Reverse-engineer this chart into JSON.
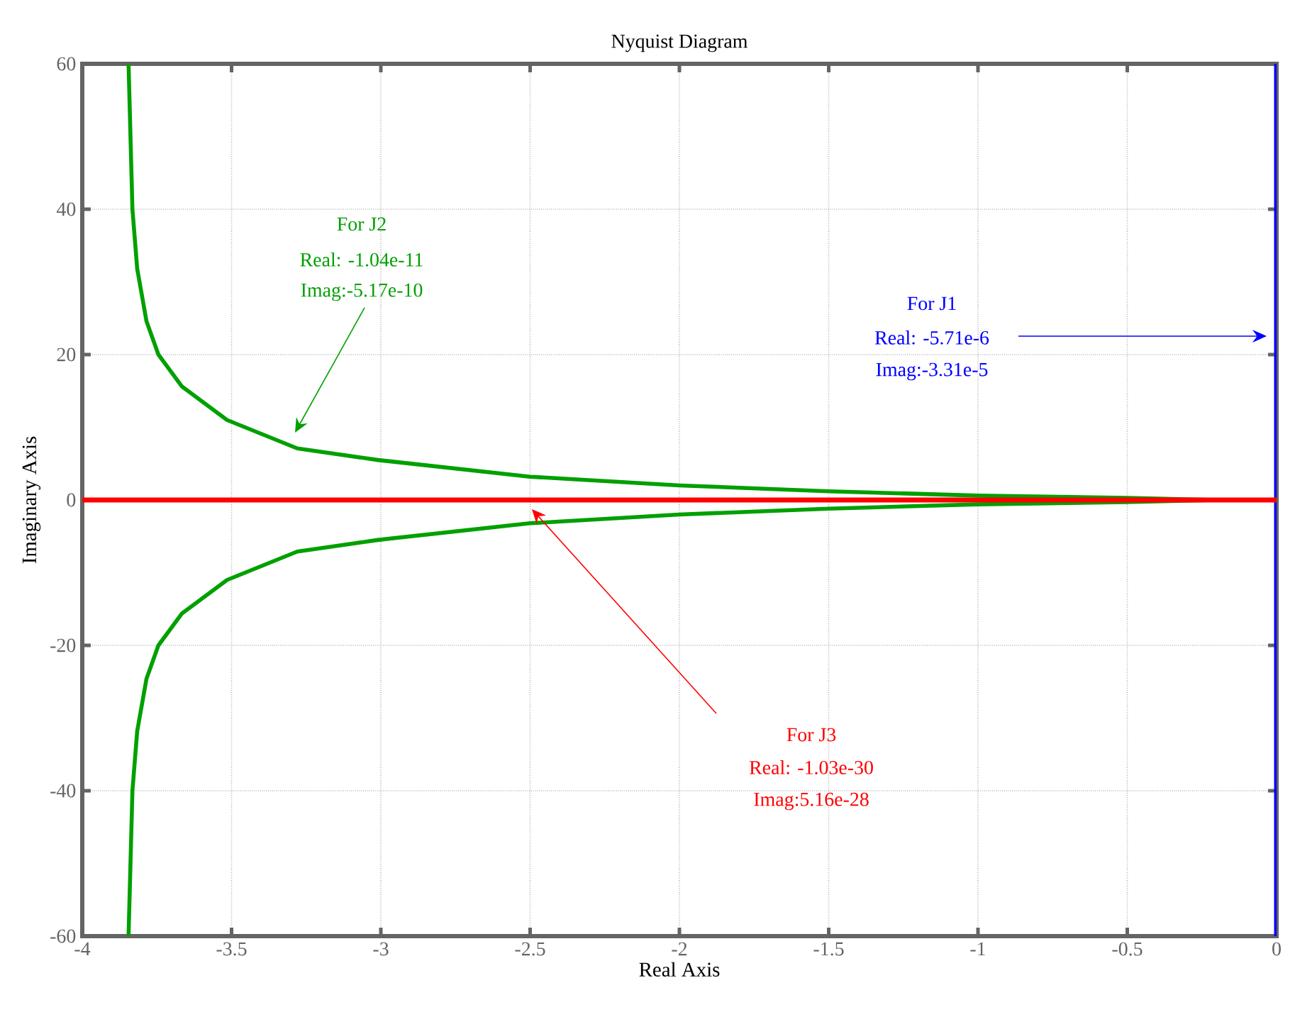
{
  "chart_data": {
    "type": "line",
    "title": "Nyquist Diagram",
    "xlabel": "Real Axis",
    "ylabel": "Imaginary Axis",
    "xlim": [
      -4,
      0
    ],
    "ylim": [
      -60,
      60
    ],
    "xticks": [
      -4,
      -3.5,
      -3,
      -2.5,
      -2,
      -1.5,
      -1,
      -0.5,
      0
    ],
    "yticks": [
      -60,
      -40,
      -20,
      0,
      20,
      40,
      60
    ],
    "grid": true,
    "series": [
      {
        "color": "#00a000",
        "x": [
          -3.845,
          -3.832,
          -3.816,
          -3.785,
          -3.745,
          -3.666,
          -3.515,
          -3.28,
          -3.01,
          -2.5,
          -2.0,
          -1.5,
          -1.0,
          -0.5,
          -0.206,
          -0.5,
          -1.0,
          -1.5,
          -2.0,
          -2.5,
          -3.01,
          -3.28,
          -3.515,
          -3.666,
          -3.745,
          -3.785,
          -3.816,
          -3.832,
          -3.845
        ],
        "values": [
          -60,
          -40,
          -31.8,
          -24.6,
          -20,
          -15.6,
          -11,
          -7.1,
          -5.5,
          -3.2,
          -2.0,
          -1.2,
          -0.6,
          -0.3,
          0,
          0.3,
          0.6,
          1.2,
          2.0,
          3.2,
          5.5,
          7.1,
          11,
          15.6,
          20,
          24.6,
          31.8,
          40,
          60
        ]
      },
      {
        "color": "#0000ff",
        "x": [
          0,
          0
        ],
        "values": [
          -60,
          60
        ]
      },
      {
        "color": "#ff0000",
        "x": [
          -4,
          0
        ],
        "values": [
          0,
          0
        ]
      }
    ],
    "annotations": [
      "For J2",
      "Real: -1.04e-11",
      "Imag:-5.17e-10",
      "For J1",
      "Real: -5.71e-6",
      "Imag:-3.31e-5",
      "For J3",
      "Real: -1.03e-30",
      "Imag:5.16e-28"
    ]
  }
}
